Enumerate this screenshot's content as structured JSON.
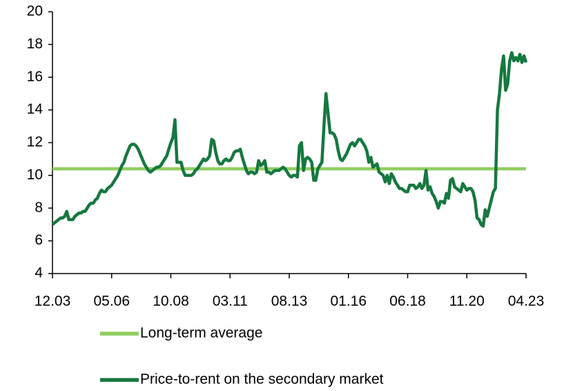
{
  "chart_data": {
    "type": "line",
    "categories": [
      "12.03",
      null,
      null,
      null,
      null,
      null,
      null,
      null,
      null,
      null,
      null,
      null,
      null,
      null,
      null,
      null,
      null,
      null,
      null,
      null,
      null,
      null,
      null,
      null,
      null,
      null,
      null,
      null,
      null,
      "05.06",
      null,
      null,
      null,
      null,
      null,
      null,
      null,
      null,
      null,
      null,
      null,
      null,
      null,
      null,
      null,
      null,
      null,
      null,
      null,
      null,
      null,
      null,
      null,
      null,
      null,
      null,
      null,
      null,
      "10.08",
      null,
      null,
      null,
      null,
      null,
      null,
      null,
      null,
      null,
      null,
      null,
      null,
      null,
      null,
      null,
      null,
      null,
      null,
      null,
      null,
      null,
      null,
      null,
      null,
      null,
      null,
      null,
      null,
      "03.11",
      null,
      null,
      null,
      null,
      null,
      null,
      null,
      null,
      null,
      null,
      null,
      null,
      null,
      null,
      null,
      null,
      null,
      null,
      null,
      null,
      null,
      null,
      null,
      null,
      null,
      null,
      null,
      null,
      "08.13",
      null,
      null,
      null,
      null,
      null,
      null,
      null,
      null,
      null,
      null,
      null,
      null,
      null,
      null,
      null,
      null,
      null,
      null,
      null,
      null,
      null,
      null,
      null,
      null,
      null,
      null,
      null,
      null,
      "01.16",
      null,
      null,
      null,
      null,
      null,
      null,
      null,
      null,
      null,
      null,
      null,
      null,
      null,
      null,
      null,
      null,
      null,
      null,
      null,
      null,
      null,
      null,
      null,
      null,
      null,
      null,
      null,
      null,
      "06.18",
      null,
      null,
      null,
      null,
      null,
      null,
      null,
      null,
      null,
      null,
      null,
      null,
      null,
      null,
      null,
      null,
      null,
      null,
      null,
      null,
      null,
      null,
      null,
      null,
      null,
      null,
      null,
      null,
      "11.20",
      null,
      null,
      null,
      null,
      null,
      null,
      null,
      null,
      null,
      null,
      null,
      null,
      null,
      null,
      null,
      null,
      null,
      null,
      null,
      null,
      null,
      null,
      null,
      null,
      null,
      null,
      null,
      null,
      "04.23"
    ],
    "series": [
      {
        "name": "Price-to-rent on the secondary market",
        "color": "#16783f",
        "values": [
          7.0,
          7.1,
          7.2,
          7.3,
          7.4,
          7.4,
          7.5,
          7.8,
          7.3,
          7.3,
          7.3,
          7.5,
          7.6,
          7.7,
          7.7,
          7.8,
          7.8,
          8.0,
          8.2,
          8.3,
          8.3,
          8.5,
          8.6,
          8.9,
          9.1,
          9.0,
          9.0,
          9.2,
          9.3,
          9.4,
          9.6,
          9.8,
          10.0,
          10.3,
          10.6,
          10.8,
          11.2,
          11.5,
          11.8,
          11.9,
          11.9,
          11.8,
          11.6,
          11.3,
          11.0,
          10.7,
          10.5,
          10.3,
          10.2,
          10.3,
          10.4,
          10.5,
          10.5,
          10.6,
          10.8,
          11.0,
          11.2,
          11.6,
          12.0,
          12.3,
          13.4,
          10.8,
          10.8,
          10.8,
          10.3,
          10.0,
          10.0,
          10.0,
          10.0,
          10.1,
          10.3,
          10.4,
          10.6,
          10.8,
          11.0,
          10.9,
          11.0,
          11.2,
          12.2,
          12.1,
          11.4,
          10.9,
          10.7,
          10.7,
          10.9,
          11.0,
          10.9,
          10.9,
          11.1,
          11.4,
          11.5,
          11.5,
          11.6,
          11.1,
          10.7,
          10.3,
          10.1,
          10.2,
          10.2,
          10.1,
          10.2,
          10.9,
          10.6,
          10.7,
          10.9,
          10.2,
          10.2,
          10.1,
          10.2,
          10.3,
          10.3,
          10.3,
          10.4,
          10.5,
          10.4,
          10.2,
          10.0,
          9.9,
          10.0,
          10.0,
          9.9,
          11.8,
          12.0,
          10.3,
          11.0,
          11.1,
          11.0,
          10.8,
          9.7,
          9.7,
          10.4,
          10.6,
          10.8,
          13.0,
          15.0,
          13.8,
          12.6,
          12.6,
          12.5,
          12.2,
          11.5,
          11.0,
          10.9,
          11.1,
          11.3,
          11.6,
          11.9,
          12.0,
          11.8,
          12.0,
          12.2,
          12.2,
          12.0,
          11.8,
          11.5,
          10.8,
          11.1,
          10.5,
          10.6,
          10.7,
          10.2,
          10.1,
          10.0,
          9.6,
          10.0,
          9.5,
          10.1,
          9.9,
          9.6,
          9.4,
          9.2,
          9.2,
          9.1,
          9.0,
          9.0,
          9.4,
          9.4,
          9.4,
          9.2,
          9.3,
          9.5,
          9.2,
          9.4,
          10.3,
          9.1,
          9.3,
          8.9,
          8.7,
          8.4,
          8.0,
          8.4,
          8.4,
          8.3,
          8.9,
          8.6,
          9.7,
          9.8,
          9.3,
          9.2,
          9.1,
          9.0,
          9.5,
          9.3,
          9.1,
          9.2,
          9.2,
          9.0,
          8.5,
          7.4,
          7.3,
          7.0,
          6.9,
          7.9,
          7.5,
          8.0,
          8.5,
          9.0,
          9.2,
          14.0,
          15.0,
          16.5,
          17.3,
          15.2,
          15.6,
          17.0,
          17.5,
          17.0,
          17.2,
          17.0,
          17.4,
          16.9,
          17.3,
          16.9
        ]
      }
    ],
    "reference_lines": [
      {
        "name": "Long-term average",
        "color": "#8fcd5e",
        "value": 10.4
      }
    ],
    "ylim": [
      4,
      20
    ],
    "yticks": [
      4,
      6,
      8,
      10,
      12,
      14,
      16,
      18,
      20
    ],
    "grid": false
  }
}
